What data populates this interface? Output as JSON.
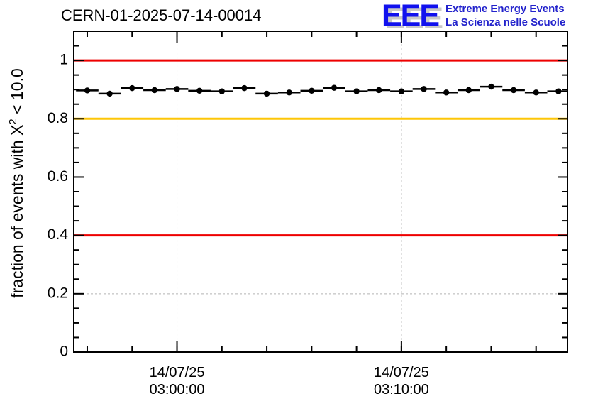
{
  "page": {
    "background": "#ffffff"
  },
  "header": {
    "title": "CERN-01-2025-07-14-00014"
  },
  "logo": {
    "letters": "EEE",
    "line1": "Extreme Energy Events",
    "line2": "La Scienza nelle Scuole",
    "letter_color": "#1111ee",
    "shadow_color": "#c9c9c9",
    "tagline_color": "#2323cc"
  },
  "ylabel_parts": {
    "prefix": "fraction of events with X",
    "sup": "2",
    "suffix": " < 10.0"
  },
  "chart_data": {
    "type": "scatter",
    "title": "CERN-01-2025-07-14-00014",
    "xlabel": "",
    "ylabel": "fraction of events with X^2 < 10.0",
    "ylim": [
      0,
      1.1
    ],
    "axis_color": "#000000",
    "yticks": {
      "major": [
        0,
        0.2,
        0.4,
        0.6,
        0.8,
        1.0
      ],
      "labels": [
        "0",
        "0.2",
        "0.4",
        "0.6",
        "0.8",
        "1"
      ],
      "minor_step": 0.05
    },
    "x_axis": {
      "span_minutes": 22,
      "start_time": "02:55:24",
      "end_time": "03:17:24",
      "major_ticks": [
        {
          "offset_min": 4.6,
          "label_lines": [
            "14/07/25",
            "03:00:00"
          ]
        },
        {
          "offset_min": 14.6,
          "label_lines": [
            "14/07/25",
            "03:10:00"
          ]
        }
      ],
      "minor_tick_start_min": 0.6,
      "minor_tick_step_min": 2
    },
    "grid": {
      "color": "#b3b3b3",
      "dash": "3 3",
      "y_values": [
        0.2,
        0.4,
        0.6,
        0.8,
        1.0
      ],
      "x_at_major_ticks": true
    },
    "threshold_lines": [
      {
        "y": 1.0,
        "color": "#ee0000"
      },
      {
        "y": 0.8,
        "color": "#fdc608"
      },
      {
        "y": 0.4,
        "color": "#ee0000"
      }
    ],
    "series": [
      {
        "name": "fraction of events with chi2 < 10",
        "color": "#000000",
        "marker": "filled-circle",
        "start_offset_min": 0.6,
        "step_min": 1.0,
        "bin_halfwidth_min": 0.5,
        "yerr": 0.004,
        "times": [
          "02:56:00",
          "02:57:00",
          "02:58:00",
          "02:59:00",
          "03:00:00",
          "03:01:00",
          "03:02:00",
          "03:03:00",
          "03:04:00",
          "03:05:00",
          "03:06:00",
          "03:07:00",
          "03:08:00",
          "03:09:00",
          "03:10:00",
          "03:11:00",
          "03:12:00",
          "03:13:00",
          "03:14:00",
          "03:15:00",
          "03:16:00",
          "03:17:00"
        ],
        "values": [
          0.897,
          0.886,
          0.905,
          0.898,
          0.902,
          0.896,
          0.894,
          0.905,
          0.886,
          0.89,
          0.896,
          0.906,
          0.894,
          0.898,
          0.894,
          0.902,
          0.89,
          0.898,
          0.91,
          0.898,
          0.89,
          0.894
        ]
      }
    ]
  }
}
